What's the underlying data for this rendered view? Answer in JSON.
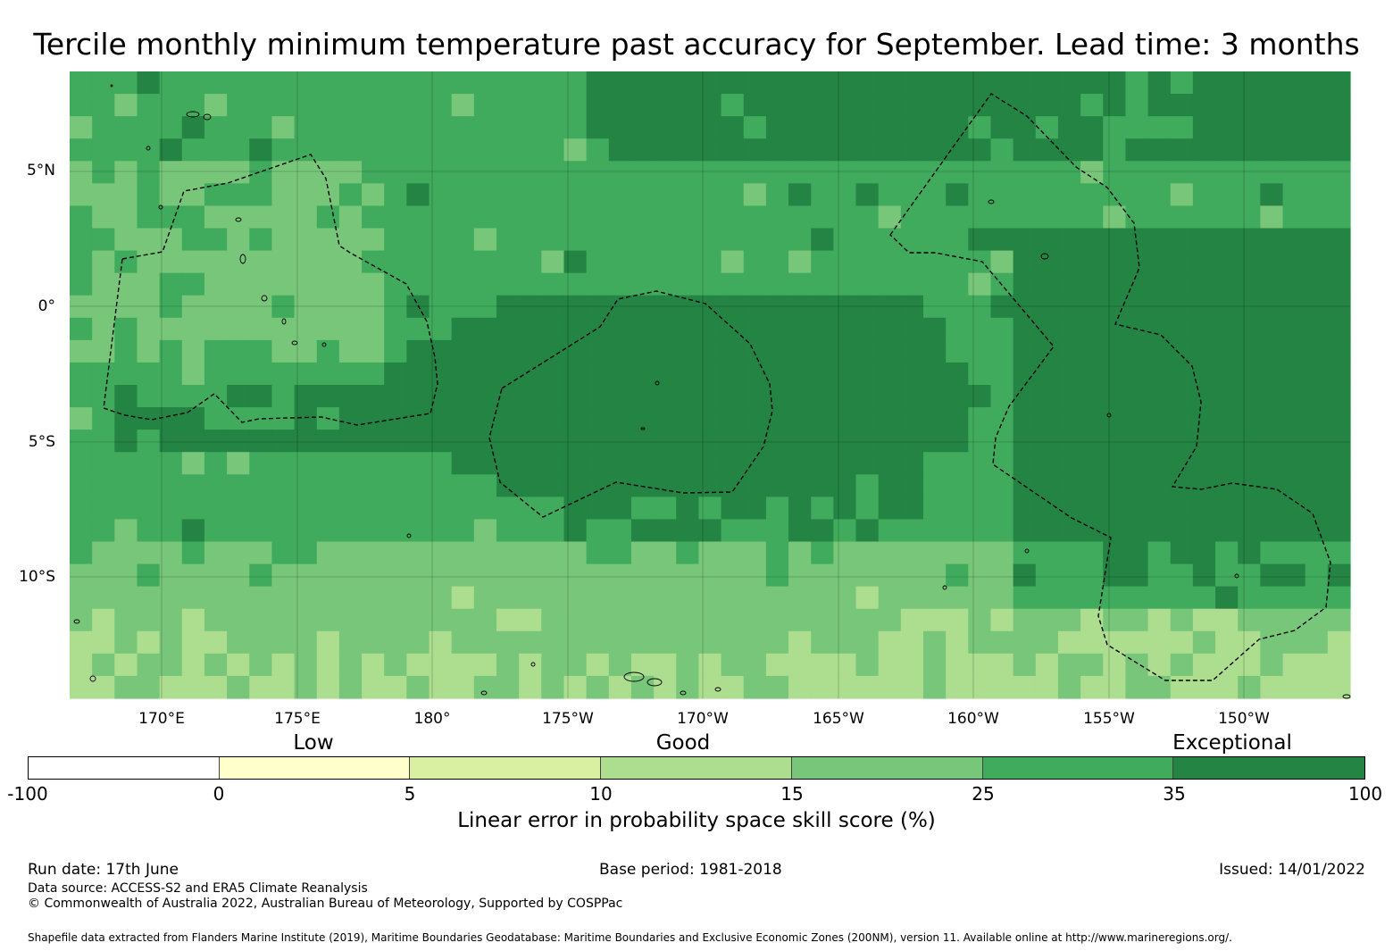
{
  "title": "Tercile monthly minimum temperature past accuracy for September. Lead time: 3 months",
  "map": {
    "lat_labels": [
      "5°N",
      "0°",
      "5°S",
      "10°S"
    ],
    "lon_labels": [
      "170°E",
      "175°E",
      "180°",
      "175°W",
      "170°W",
      "165°W",
      "160°W",
      "155°W",
      "150°W"
    ],
    "extent": {
      "lon_min": 166.6,
      "lon_max": 213.9,
      "lat_min": -14.6,
      "lat_max": 8.6
    },
    "palette": {
      "pale_yellow": "#ffffcc",
      "light_yellow_green": "#d9f0a3",
      "light_green": "#addd8e",
      "mid_green": "#78c679",
      "green": "#41ab5d",
      "dark_green": "#238443"
    }
  },
  "legend": {
    "categories": [
      "Low",
      "Good",
      "Exceptional"
    ],
    "ticks": [
      "-100",
      "0",
      "5",
      "10",
      "15",
      "25",
      "35",
      "100"
    ],
    "colors": [
      "#ffffff",
      "#ffffcc",
      "#d9f0a3",
      "#addd8e",
      "#78c679",
      "#41ab5d",
      "#238443"
    ],
    "title": "Linear error in probability space skill score (%)"
  },
  "footer": {
    "run_date": "Run date: 17th June",
    "base_period": "Base period: 1981-2018",
    "issued": "Issued: 14/01/2022",
    "data_source": "Data source: ACCESS-S2 and ERA5 Climate Reanalysis",
    "copyright": "© Commonwealth of Australia 2022, Australian Bureau of Meteorology, Supported by COSPPac",
    "shapefile": "Shapefile data extracted from Flanders Marine Institute (2019), Maritime Boundaries Geodatabase: Maritime Boundaries and Exclusive Economic Zones (200NM), version 11. Available online at http://www.marineregions.org/."
  }
}
